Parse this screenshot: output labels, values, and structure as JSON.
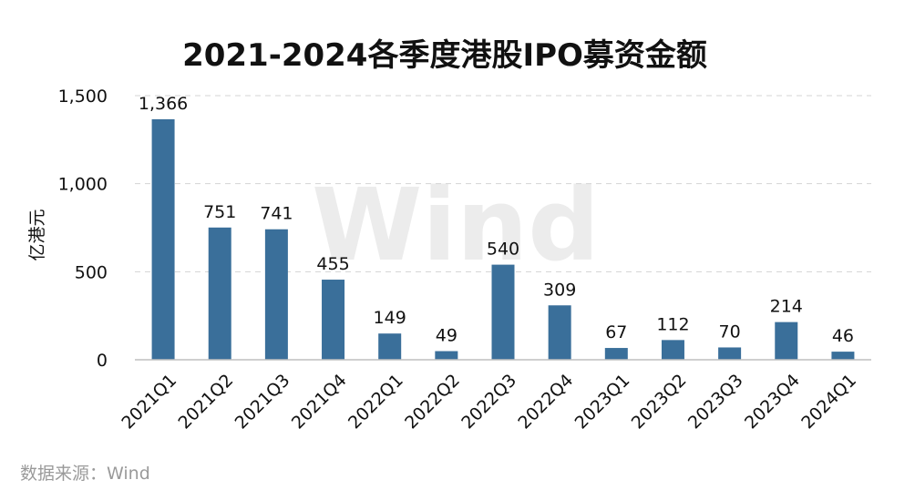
{
  "chart_data": {
    "type": "bar",
    "title": "2021-2024各季度港股IPO募资金额",
    "ylabel": "亿港元",
    "xlabel": "",
    "categories": [
      "2021Q1",
      "2021Q2",
      "2021Q3",
      "2021Q4",
      "2022Q1",
      "2022Q2",
      "2022Q3",
      "2022Q4",
      "2023Q1",
      "2023Q2",
      "2023Q3",
      "2023Q4",
      "2024Q1"
    ],
    "values": [
      1366,
      751,
      741,
      455,
      149,
      49,
      540,
      309,
      67,
      112,
      70,
      214,
      46
    ],
    "value_labels": [
      "1,366",
      "751",
      "741",
      "455",
      "149",
      "49",
      "540",
      "309",
      "67",
      "112",
      "70",
      "214",
      "46"
    ],
    "ylim": [
      0,
      1500
    ],
    "yticks": [
      0,
      500,
      1000,
      1500
    ],
    "ytick_labels": [
      "0",
      "500",
      "1,000",
      "1,500"
    ],
    "grid": true,
    "legend": "none",
    "bar_color": "#3a6f9a",
    "watermark": "Wind",
    "source": "数据来源：Wind"
  }
}
